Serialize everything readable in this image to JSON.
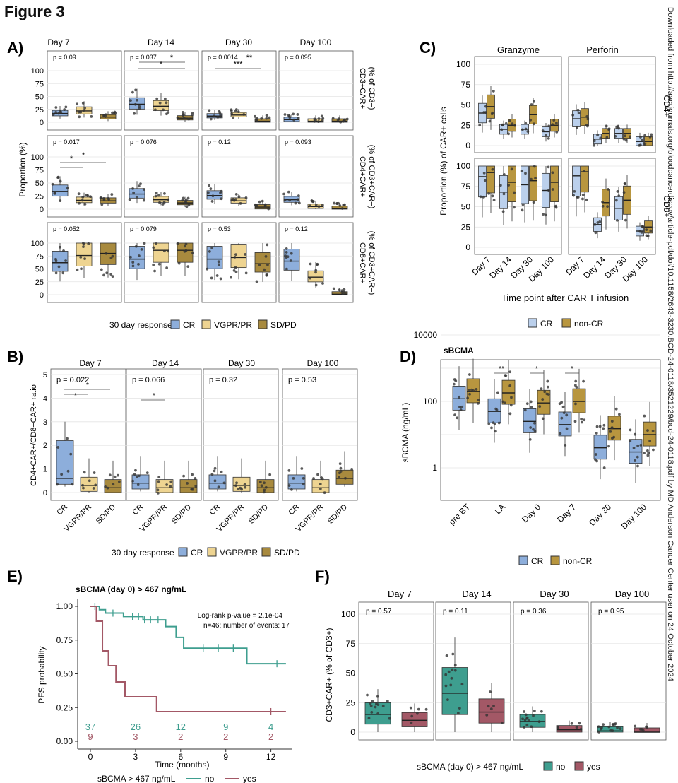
{
  "figure_title": "Figure 3",
  "watermark": "Downloaded from http://aacrjournals.org/bloodcancerdiscov/article-pdf/doi/10.1158/2643-3230.BCD-24-0118/3521229/bcd-24-0118.pdf by MD Anderson Cancer Center user on 24 October 2024",
  "colors": {
    "cr": "#8DAEDB",
    "vgpr": "#EED491",
    "sdpd": "#A88A3E",
    "noncr": "#B8963F",
    "cr_light": "#BBD0EC",
    "no": "#3E9E8F",
    "yes": "#A35866",
    "strip": "#f2f2f2"
  },
  "panelA": {
    "label": "A)",
    "days": [
      "Day 7",
      "Day 14",
      "Day 30",
      "Day 100"
    ],
    "y_label": "Proportion (%)",
    "y_ticks": [
      "0",
      "25",
      "50",
      "75",
      "100"
    ],
    "rows": [
      {
        "strip": [
          "CD3+CAR+",
          "(% of CD3+)"
        ],
        "p": [
          "p = 0.09",
          "p = 0.037",
          "p = 0.0014",
          "p = 0.095"
        ]
      },
      {
        "strip": [
          "CD4+CAR+",
          "(% of CD3+CAR+)"
        ],
        "p": [
          "p = 0.017",
          "p = 0.076",
          "p = 0.12",
          "p = 0.093"
        ]
      },
      {
        "strip": [
          "CD8+CAR+",
          "(% of CD3+CAR+)"
        ],
        "p": [
          "p = 0.052",
          "p = 0.079",
          "p = 0.53",
          "p = 0.12"
        ]
      }
    ],
    "sig": {
      "star": "*",
      "dstar": "**",
      "tstar": "***"
    },
    "legend_title": "30 day response",
    "legend": [
      "CR",
      "VGPR/PR",
      "SD/PD"
    ]
  },
  "panelB": {
    "label": "B)",
    "days": [
      "Day 7",
      "Day 14",
      "Day 30",
      "Day 100"
    ],
    "y_label": "CD4+CAR+/CD8+CAR+ ratio",
    "y_ticks": [
      "0",
      "1",
      "2",
      "3",
      "4",
      "5"
    ],
    "x_cats": [
      "CR",
      "VGPR/PR",
      "SD/PD"
    ],
    "p": [
      "p = 0.022",
      "p = 0.066",
      "p = 0.32",
      "p = 0.53"
    ],
    "legend_title": "30 day response",
    "legend": [
      "CR",
      "VGPR/PR",
      "SD/PD"
    ]
  },
  "panelC": {
    "label": "C)",
    "cols": [
      "Granzyme",
      "Perforin"
    ],
    "rows": [
      "CD4+",
      "CD8+"
    ],
    "y_label": "Proportion (%) of CAR+ cells",
    "x_label": "Time point after CAR T infusion",
    "x_cats": [
      "Day 7",
      "Day 14",
      "Day 30",
      "Day 100"
    ],
    "y_ticks": [
      "0",
      "25",
      "50",
      "75",
      "100"
    ],
    "legend": [
      "CR",
      "non-CR"
    ]
  },
  "panelD": {
    "label": "D)",
    "title": "sBCMA",
    "y_label": "sBCMA (ng/mL)",
    "y_ticks": [
      "1",
      "100",
      "10000"
    ],
    "x_cats": [
      "pre BT",
      "LA",
      "Day 0",
      "Day 7",
      "Day 30",
      "Day 100"
    ],
    "sig": [
      "",
      "**",
      "*",
      "*",
      "",
      ""
    ],
    "legend": [
      "CR",
      "non-CR"
    ]
  },
  "panelE": {
    "label": "E)",
    "title": "sBCMA (day 0) > 467 ng/mL",
    "y_label": "PFS probability",
    "x_label": "Time (months)",
    "annotation": [
      "Log-rank p-value = 2.1e-04",
      "n=46; number of events: 17"
    ],
    "y_ticks": [
      "0.00",
      "0.25",
      "0.50",
      "0.75",
      "1.00"
    ],
    "x_ticks": [
      "0",
      "3",
      "6",
      "9",
      "12"
    ],
    "risk_no": [
      "37",
      "26",
      "12",
      "9",
      "4"
    ],
    "risk_yes": [
      "9",
      "3",
      "2",
      "2",
      "2"
    ],
    "legend_title": "sBCMA > 467 ng/mL",
    "legend": [
      "no",
      "yes"
    ]
  },
  "panelF": {
    "label": "F)",
    "days": [
      "Day 7",
      "Day 14",
      "Day 30",
      "Day 100"
    ],
    "p": [
      "p = 0.57",
      "p = 0.11",
      "p = 0.36",
      "p = 0.95"
    ],
    "y_label": "CD3+CAR+ (% of CD3+)",
    "y_ticks": [
      "0",
      "25",
      "50",
      "75",
      "100"
    ],
    "legend_title": "sBCMA (day 0) > 467 ng/mL",
    "legend": [
      "no",
      "yes"
    ]
  },
  "chart_data": [
    {
      "panel": "A",
      "type": "box",
      "metric": "CD3+CAR+ (% of CD3+)",
      "groups": [
        "CR",
        "VGPR/PR",
        "SD/PD"
      ],
      "medians": {
        "Day 7": [
          17,
          22,
          10
        ],
        "Day 14": [
          35,
          31,
          8
        ],
        "Day 30": [
          12,
          14,
          2
        ],
        "Day 100": [
          5,
          2,
          2
        ]
      }
    },
    {
      "panel": "A",
      "type": "box",
      "metric": "CD4+CAR+ (% of CD3+CAR+)",
      "groups": [
        "CR",
        "VGPR/PR",
        "SD/PD"
      ],
      "medians": {
        "Day 7": [
          34,
          17,
          16
        ],
        "Day 14": [
          29,
          18,
          12
        ],
        "Day 30": [
          26,
          16,
          4
        ],
        "Day 100": [
          18,
          5,
          1
        ]
      }
    },
    {
      "panel": "A",
      "type": "box",
      "metric": "CD8+CAR+ (% of CD3+CAR+)",
      "groups": [
        "CR",
        "VGPR/PR",
        "SD/PD"
      ],
      "medians": {
        "Day 7": [
          62,
          76,
          80
        ],
        "Day 14": [
          69,
          86,
          86
        ],
        "Day 30": [
          69,
          72,
          60
        ],
        "Day 100": [
          65,
          34,
          1
        ]
      }
    },
    {
      "panel": "B",
      "type": "box",
      "metric": "CD4+CAR+/CD8+CAR+ ratio",
      "groups": [
        "CR",
        "VGPR/PR",
        "SD/PD"
      ],
      "medians": {
        "Day 7": [
          0.6,
          0.3,
          0.2
        ],
        "Day 14": [
          0.4,
          0.2,
          0.2
        ],
        "Day 30": [
          0.4,
          0.3,
          0.2
        ],
        "Day 100": [
          0.4,
          0.2,
          0.6
        ]
      }
    },
    {
      "panel": "C",
      "type": "box",
      "metric": "Proportion (%) of CAR+ cells",
      "groups": [
        "CR",
        "non-CR"
      ],
      "medians": {
        "Granzyme CD4+": {
          "Day 7": [
            40,
            48
          ],
          "Day 14": [
            20,
            25
          ],
          "Day 30": [
            20,
            38
          ],
          "Day 100": [
            17,
            25
          ]
        },
        "Perforin CD4+": {
          "Day 7": [
            33,
            35
          ],
          "Day 14": [
            8,
            15
          ],
          "Day 30": [
            15,
            15
          ],
          "Day 100": [
            5,
            5
          ]
        },
        "Granzyme CD8+": {
          "Day 7": [
            87,
            92
          ],
          "Day 14": [
            68,
            80
          ],
          "Day 30": [
            77,
            82
          ],
          "Day 100": [
            70,
            80
          ]
        },
        "Perforin CD8+": {
          "Day 7": [
            88,
            93
          ],
          "Day 14": [
            28,
            55
          ],
          "Day 30": [
            48,
            58
          ],
          "Day 100": [
            20,
            25
          ]
        }
      }
    },
    {
      "panel": "D",
      "type": "box",
      "metric": "sBCMA (ng/mL)",
      "scale": "log10",
      "groups": [
        "CR",
        "non-CR"
      ],
      "medians": {
        "pre BT": [
          120,
          200
        ],
        "LA": [
          50,
          180
        ],
        "Day 0": [
          25,
          90
        ],
        "Day 7": [
          20,
          100
        ],
        "Day 30": [
          4,
          15
        ],
        "Day 100": [
          3,
          10
        ]
      }
    },
    {
      "panel": "E",
      "type": "line",
      "metric": "PFS probability",
      "x": "months",
      "series": [
        {
          "name": "no",
          "x": [
            0,
            0.6,
            1.0,
            2.2,
            3.5,
            5.0,
            5.7,
            6.2,
            10.4,
            13.0
          ],
          "y": [
            1.0,
            0.975,
            0.95,
            0.925,
            0.9,
            0.85,
            0.77,
            0.69,
            0.575,
            0.575
          ]
        },
        {
          "name": "yes",
          "x": [
            0,
            0.4,
            0.8,
            1.2,
            1.7,
            2.3,
            4.4,
            13.0
          ],
          "y": [
            1.0,
            0.89,
            0.67,
            0.56,
            0.44,
            0.33,
            0.22,
            0.22
          ]
        }
      ]
    },
    {
      "panel": "F",
      "type": "box",
      "metric": "CD3+CAR+ (% of CD3+)",
      "groups": [
        "no",
        "yes"
      ],
      "medians": {
        "Day 7": [
          15,
          10
        ],
        "Day 14": [
          33,
          17
        ],
        "Day 30": [
          9,
          2
        ],
        "Day 100": [
          1,
          0
        ]
      }
    }
  ]
}
